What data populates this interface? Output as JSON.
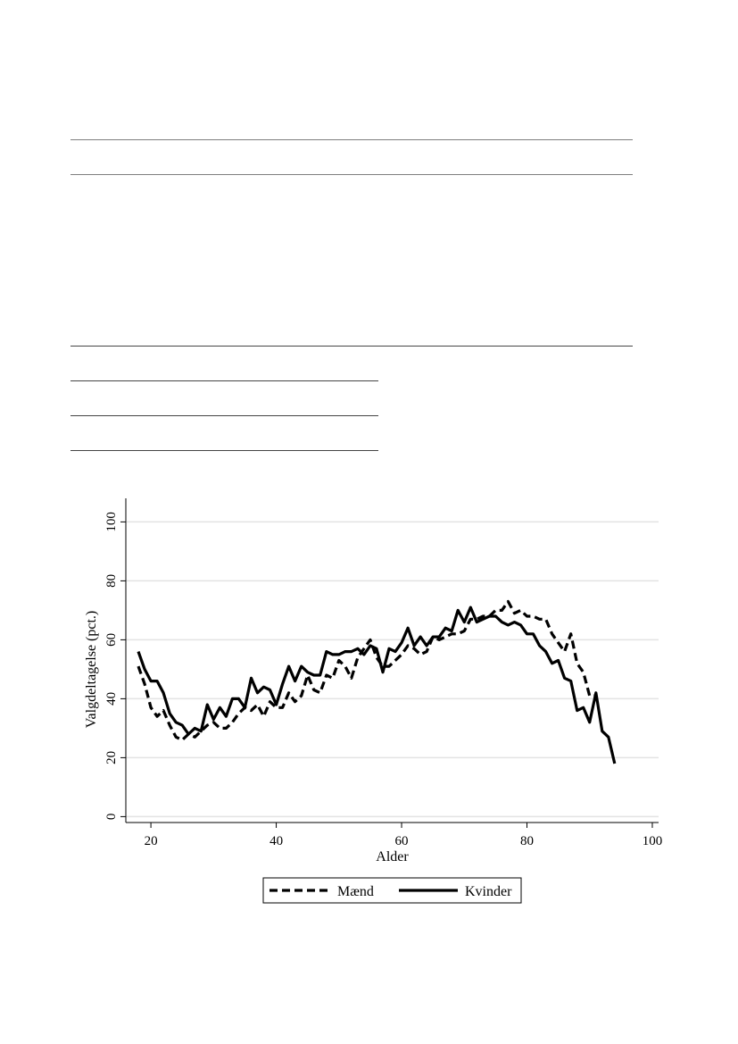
{
  "chart_data": {
    "type": "line",
    "xlabel": "Alder",
    "ylabel": "Valgdeltagelse (pct.)",
    "xlim": [
      16,
      101
    ],
    "ylim": [
      -2,
      108
    ],
    "xticks": [
      20,
      40,
      60,
      80,
      100
    ],
    "yticks": [
      0,
      20,
      40,
      60,
      80,
      100
    ],
    "grid": true,
    "legend_position": "bottom",
    "series": [
      {
        "name": "Mænd",
        "style": "dashed",
        "color": "#000000",
        "x": [
          18,
          19,
          20,
          21,
          22,
          23,
          24,
          25,
          26,
          27,
          28,
          29,
          30,
          31,
          32,
          33,
          34,
          35,
          36,
          37,
          38,
          39,
          40,
          41,
          42,
          43,
          44,
          45,
          46,
          47,
          48,
          49,
          50,
          51,
          52,
          53,
          54,
          55,
          56,
          57,
          58,
          59,
          60,
          61,
          62,
          63,
          64,
          65,
          66,
          67,
          68,
          69,
          70,
          71,
          72,
          73,
          74,
          75,
          76,
          77,
          78,
          79,
          80,
          81,
          82,
          83,
          84,
          85,
          86,
          87,
          88,
          89,
          90,
          91
        ],
        "y": [
          51,
          45,
          37,
          34,
          36,
          31,
          27,
          26,
          28,
          27,
          29,
          31,
          32,
          30,
          30,
          32,
          35,
          37,
          36,
          38,
          34,
          39,
          37,
          37,
          42,
          39,
          41,
          48,
          43,
          42,
          48,
          47,
          53,
          51,
          47,
          54,
          57,
          60,
          54,
          51,
          51,
          53,
          55,
          58,
          57,
          55,
          56,
          61,
          60,
          61,
          62,
          62,
          63,
          67,
          67,
          68,
          68,
          70,
          70,
          73,
          69,
          70,
          68,
          68,
          67,
          67,
          62,
          59,
          56,
          62,
          52,
          49,
          41,
          41
        ]
      },
      {
        "name": "Kvinder",
        "style": "solid",
        "color": "#000000",
        "x": [
          18,
          19,
          20,
          21,
          22,
          23,
          24,
          25,
          26,
          27,
          28,
          29,
          30,
          31,
          32,
          33,
          34,
          35,
          36,
          37,
          38,
          39,
          40,
          41,
          42,
          43,
          44,
          45,
          46,
          47,
          48,
          49,
          50,
          51,
          52,
          53,
          54,
          55,
          56,
          57,
          58,
          59,
          60,
          61,
          62,
          63,
          64,
          65,
          66,
          67,
          68,
          69,
          70,
          71,
          72,
          73,
          74,
          75,
          76,
          77,
          78,
          79,
          80,
          81,
          82,
          83,
          84,
          85,
          86,
          87,
          88,
          89,
          90,
          91,
          92,
          93,
          94
        ],
        "y": [
          56,
          50,
          46,
          46,
          42,
          35,
          32,
          31,
          28,
          30,
          29,
          38,
          33,
          37,
          34,
          40,
          40,
          37,
          47,
          42,
          44,
          43,
          38,
          45,
          51,
          46,
          51,
          49,
          48,
          48,
          56,
          55,
          55,
          56,
          56,
          57,
          55,
          58,
          57,
          49,
          57,
          56,
          59,
          64,
          58,
          61,
          58,
          61,
          61,
          64,
          63,
          70,
          66,
          71,
          66,
          67,
          68,
          68,
          66,
          65,
          66,
          65,
          62,
          62,
          58,
          56,
          52,
          53,
          47,
          46,
          36,
          37,
          32,
          42,
          29,
          27,
          18
        ]
      }
    ]
  }
}
